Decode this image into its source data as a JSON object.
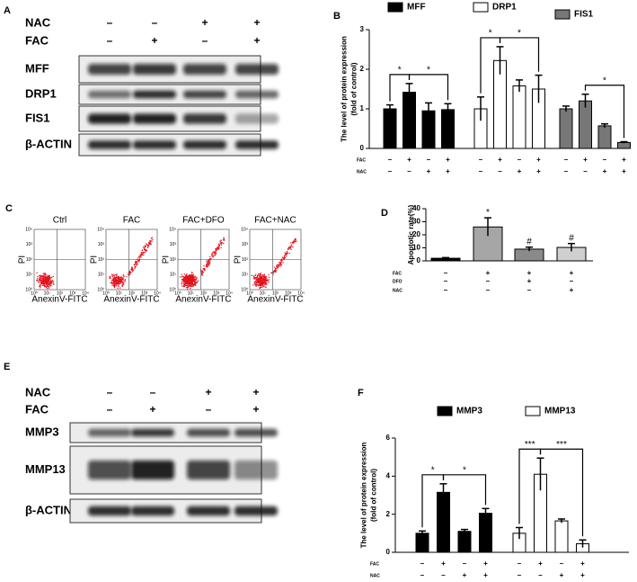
{
  "blots": [
    {
      "panel": "A",
      "conditions": [
        {
          "label": "NAC",
          "signs": [
            "–",
            "–",
            "+",
            "+"
          ]
        },
        {
          "label": "FAC",
          "signs": [
            "–",
            "+",
            "–",
            "+"
          ]
        }
      ],
      "bands": [
        "MFF",
        "DRP1",
        "FIS1",
        "β-ACTIN"
      ]
    },
    {
      "panel": "E",
      "conditions": [
        {
          "label": "NAC",
          "signs": [
            "–",
            "–",
            "+",
            "+"
          ]
        },
        {
          "label": "FAC",
          "signs": [
            "–",
            "+",
            "–",
            "+"
          ]
        }
      ],
      "bands": [
        "MMP3",
        "MMP13",
        "β-ACTIN"
      ]
    }
  ],
  "flow": {
    "panel": "C",
    "titles": [
      "Ctrl",
      "FAC",
      "FAC+DFO",
      "FAC+NAC"
    ],
    "x_label": "AnexinV-FITC",
    "y_label": "PI",
    "ticks": [
      "10⁰",
      "10¹",
      "10²",
      "10³",
      "10⁴"
    ]
  },
  "chart_data": [
    {
      "type": "bar",
      "panel": "B",
      "y_label": [
        "The level of protein expression",
        "(fold of control)"
      ],
      "ylim": [
        0,
        3
      ],
      "yticks": [
        0,
        1,
        2,
        3
      ],
      "series": [
        {
          "name": "MFF",
          "color": "#000000",
          "values": [
            1.0,
            1.42,
            0.95,
            0.98
          ],
          "errors": [
            0.1,
            0.22,
            0.2,
            0.15
          ]
        },
        {
          "name": "DRP1",
          "color": "#ffffff",
          "values": [
            1.0,
            2.22,
            1.58,
            1.5
          ],
          "errors": [
            0.3,
            0.35,
            0.15,
            0.35
          ]
        },
        {
          "name": "FIS1",
          "color": "#777777",
          "values": [
            1.0,
            1.2,
            0.57,
            0.15
          ],
          "errors": [
            0.07,
            0.17,
            0.05,
            0.02
          ]
        }
      ],
      "conditions": [
        {
          "label": "FAC",
          "signs": [
            "–",
            "+",
            "–",
            "+"
          ]
        },
        {
          "label": "NAC",
          "signs": [
            "–",
            "–",
            "+",
            "+"
          ]
        }
      ],
      "significance": [
        {
          "series": 0,
          "bars": [
            0,
            1
          ],
          "label": "*"
        },
        {
          "series": 0,
          "bars": [
            1,
            3
          ],
          "label": "*"
        },
        {
          "series": 1,
          "bars": [
            0,
            1
          ],
          "label": "*"
        },
        {
          "series": 1,
          "bars": [
            1,
            3
          ],
          "label": "*"
        },
        {
          "series": 2,
          "bars": [
            1,
            3
          ],
          "label": "*"
        }
      ]
    },
    {
      "type": "bar",
      "panel": "D",
      "y_label": [
        "Apoptotic rate(%)"
      ],
      "ylim": [
        0,
        40
      ],
      "yticks": [
        0,
        10,
        20,
        30,
        40
      ],
      "values": [
        2,
        26,
        9,
        10.3
      ],
      "errors": [
        0.5,
        7,
        1.5,
        3
      ],
      "colors": [
        "#000000",
        "#a6a6a6",
        "#8a8a8a",
        "#cfcfcf"
      ],
      "annotations": [
        null,
        "*",
        "#",
        "#"
      ],
      "conditions": [
        {
          "label": "FAC",
          "signs": [
            "–",
            "+",
            "+",
            "+"
          ]
        },
        {
          "label": "DFO",
          "signs": [
            "–",
            "–",
            "+",
            "–"
          ]
        },
        {
          "label": "NAC",
          "signs": [
            "–",
            "–",
            "–",
            "+"
          ]
        }
      ]
    },
    {
      "type": "bar",
      "panel": "F",
      "y_label": [
        "The level of protein expression",
        "(fold of control)"
      ],
      "ylim": [
        0,
        6
      ],
      "yticks": [
        0,
        2,
        4,
        6
      ],
      "series": [
        {
          "name": "MMP3",
          "color": "#000000",
          "values": [
            1.0,
            3.15,
            1.1,
            2.05
          ],
          "errors": [
            0.12,
            0.45,
            0.1,
            0.25
          ]
        },
        {
          "name": "MMP13",
          "color": "#ffffff",
          "values": [
            1.0,
            4.1,
            1.65,
            0.45
          ],
          "errors": [
            0.3,
            0.85,
            0.1,
            0.2
          ]
        }
      ],
      "conditions": [
        {
          "label": "FAC",
          "signs": [
            "–",
            "+",
            "–",
            "+"
          ]
        },
        {
          "label": "NAC",
          "signs": [
            "–",
            "–",
            "+",
            "+"
          ]
        }
      ],
      "significance": [
        {
          "series": 0,
          "bars": [
            0,
            1
          ],
          "label": "*"
        },
        {
          "series": 0,
          "bars": [
            1,
            3
          ],
          "label": "*"
        },
        {
          "series": 1,
          "bars": [
            0,
            1
          ],
          "label": "***"
        },
        {
          "series": 1,
          "bars": [
            1,
            3
          ],
          "label": "***"
        }
      ]
    }
  ]
}
